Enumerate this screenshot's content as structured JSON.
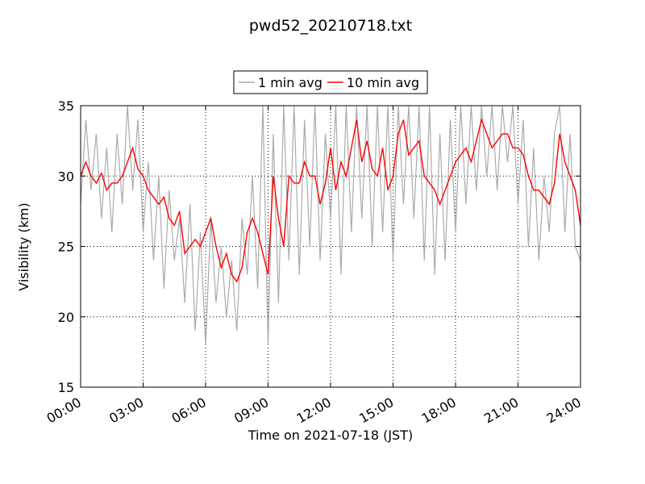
{
  "chart_data": {
    "type": "line",
    "title": "pwd52_20210718.txt",
    "xlabel": "Time on 2021-07-18 (JST)",
    "ylabel": "Visibility (km)",
    "x": [
      0,
      0.25,
      0.5,
      0.75,
      1,
      1.25,
      1.5,
      1.75,
      2,
      2.25,
      2.5,
      2.75,
      3,
      3.25,
      3.5,
      3.75,
      4,
      4.25,
      4.5,
      4.75,
      5,
      5.25,
      5.5,
      5.75,
      6,
      6.25,
      6.5,
      6.75,
      7,
      7.25,
      7.5,
      7.75,
      8,
      8.25,
      8.5,
      8.75,
      9,
      9.25,
      9.5,
      9.75,
      10,
      10.25,
      10.5,
      10.75,
      11,
      11.25,
      11.5,
      11.75,
      12,
      12.25,
      12.5,
      12.75,
      13,
      13.25,
      13.5,
      13.75,
      14,
      14.25,
      14.5,
      14.75,
      15,
      15.25,
      15.5,
      15.75,
      16,
      16.25,
      16.5,
      16.75,
      17,
      17.25,
      17.5,
      17.75,
      18,
      18.25,
      18.5,
      18.75,
      19,
      19.25,
      19.5,
      19.75,
      20,
      20.25,
      20.5,
      20.75,
      21,
      21.25,
      21.5,
      21.75,
      22,
      22.25,
      22.5,
      22.75,
      23,
      23.25,
      23.5,
      23.75,
      24
    ],
    "series": [
      {
        "name": "1 min avg",
        "color": "#aaaaaa",
        "values": [
          28,
          34,
          29,
          33,
          27,
          32,
          26,
          33,
          28,
          35,
          29,
          34,
          26,
          31,
          24,
          30,
          22,
          29,
          24,
          27,
          21,
          28,
          19,
          26,
          18,
          27,
          21,
          25,
          20,
          24,
          19,
          27,
          23,
          30,
          22,
          35,
          18,
          33,
          21,
          35,
          24,
          35,
          23,
          34,
          25,
          35,
          24,
          33,
          27,
          35,
          23,
          35,
          26,
          35,
          27,
          35,
          25,
          35,
          26,
          35,
          24,
          35,
          28,
          35,
          27,
          35,
          24,
          35,
          23,
          33,
          24,
          34,
          26,
          35,
          28,
          35,
          29,
          35,
          30,
          35,
          29,
          35,
          31,
          35,
          28,
          34,
          25,
          32,
          24,
          30,
          26,
          33,
          35,
          26,
          33,
          25,
          24
        ]
      },
      {
        "name": "10 min avg",
        "color": "#ff0000",
        "values": [
          30,
          31,
          30,
          29.5,
          30.2,
          29,
          29.5,
          29.5,
          30,
          31,
          32,
          30.5,
          30,
          29,
          28.5,
          28,
          28.5,
          27,
          26.5,
          27.5,
          24.5,
          25,
          25.5,
          25,
          26,
          27,
          25,
          23.5,
          24.5,
          23,
          22.5,
          23.5,
          26,
          27,
          26,
          24.5,
          23,
          30,
          27,
          25,
          30,
          29.5,
          29.5,
          31,
          30,
          30,
          28,
          29.5,
          32,
          29,
          31,
          30,
          32,
          34,
          31,
          32.5,
          30.5,
          30,
          32,
          29,
          30,
          33,
          34,
          31.5,
          32,
          32.5,
          30,
          29.5,
          29,
          28,
          29,
          30,
          31,
          31.5,
          32,
          31,
          32.5,
          34,
          33,
          32,
          32.5,
          33,
          33,
          32,
          32,
          31.5,
          30,
          29,
          29,
          28.5,
          28,
          29.5,
          33,
          31,
          30,
          29,
          26.5
        ]
      }
    ],
    "xlim": [
      0,
      24
    ],
    "xticks": [
      {
        "value": 0,
        "label": "00:00"
      },
      {
        "value": 3,
        "label": "03:00"
      },
      {
        "value": 6,
        "label": "06:00"
      },
      {
        "value": 9,
        "label": "09:00"
      },
      {
        "value": 12,
        "label": "12:00"
      },
      {
        "value": 15,
        "label": "15:00"
      },
      {
        "value": 18,
        "label": "18:00"
      },
      {
        "value": 21,
        "label": "21:00"
      },
      {
        "value": 24,
        "label": "24:00"
      }
    ],
    "ylim": [
      15,
      35
    ],
    "yticks": [
      15,
      20,
      25,
      30,
      35
    ],
    "grid": true,
    "legend": "upper center"
  }
}
